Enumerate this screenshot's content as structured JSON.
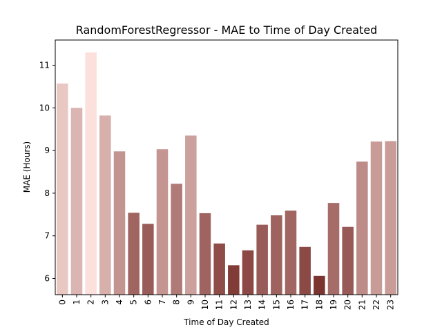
{
  "chart_data": {
    "type": "bar",
    "title": "RandomForestRegressor - MAE to Time of Day Created",
    "xlabel": "Time of Day Created",
    "ylabel": "MAE (Hours)",
    "categories": [
      "0",
      "1",
      "2",
      "3",
      "4",
      "5",
      "6",
      "7",
      "8",
      "9",
      "10",
      "11",
      "12",
      "13",
      "14",
      "15",
      "16",
      "17",
      "18",
      "19",
      "20",
      "21",
      "22",
      "23"
    ],
    "values": [
      10.57,
      10.0,
      11.3,
      9.82,
      8.98,
      7.54,
      7.28,
      9.03,
      8.22,
      9.35,
      7.53,
      6.82,
      6.31,
      6.66,
      7.26,
      7.48,
      7.59,
      6.74,
      6.06,
      7.77,
      7.21,
      8.74,
      9.21,
      9.22
    ],
    "ylim": [
      5.62,
      11.59
    ],
    "yticks": [
      6,
      7,
      8,
      9,
      10,
      11
    ],
    "grid": false,
    "legend": "none",
    "color_scale": {
      "low": "#7c3430",
      "high": "#fbe0dc"
    }
  }
}
